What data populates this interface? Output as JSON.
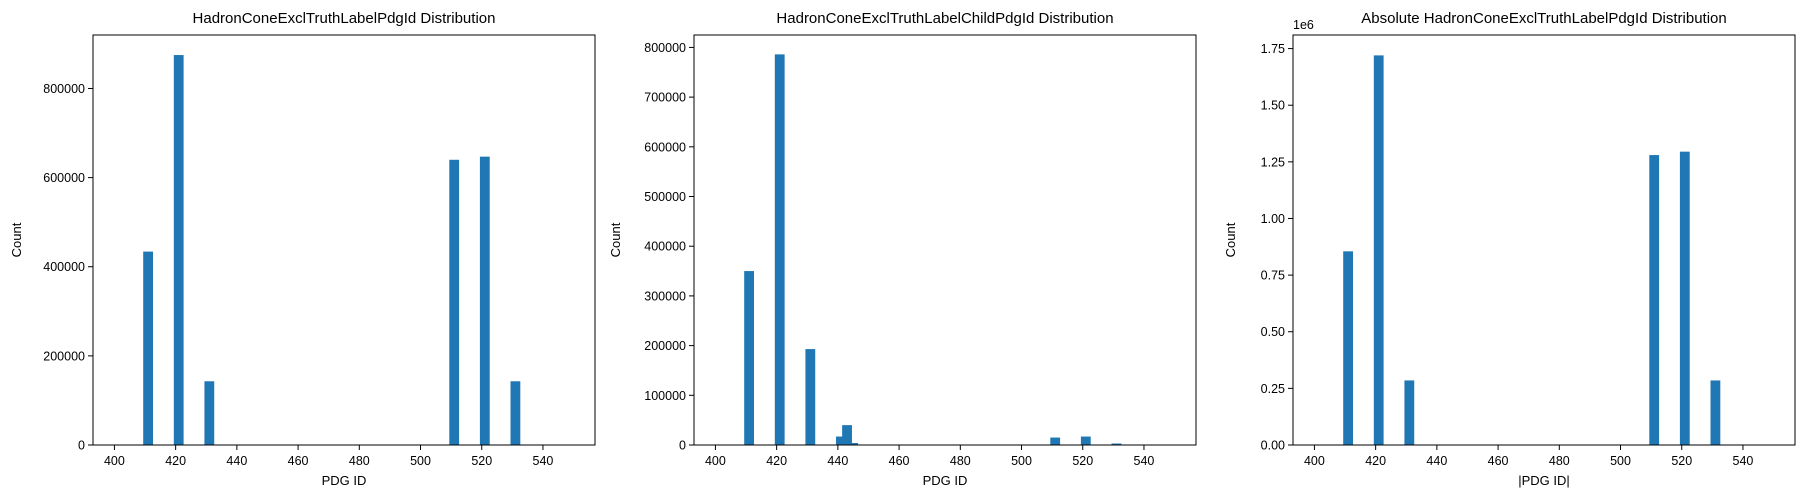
{
  "colors": {
    "bar": "#1f77b4"
  },
  "chart_data": [
    {
      "type": "bar",
      "title": "HadronConeExclTruthLabelPdgId Distribution",
      "xlabel": "PDG ID",
      "ylabel": "Count",
      "xlim": [
        393,
        557
      ],
      "ylim": [
        0,
        920000
      ],
      "bin_width": 3.2,
      "xticks": [
        400,
        420,
        440,
        460,
        480,
        500,
        520,
        540
      ],
      "xtick_labels": [
        "400",
        "420",
        "440",
        "460",
        "480",
        "500",
        "520",
        "540"
      ],
      "yticks": [
        0,
        200000,
        400000,
        600000,
        800000
      ],
      "ytick_labels": [
        "0",
        "200000",
        "400000",
        "600000",
        "800000"
      ],
      "offset_text": "",
      "x": [
        411,
        421,
        431,
        511,
        521,
        531
      ],
      "values": [
        434000,
        875000,
        143000,
        640000,
        647000,
        143000
      ]
    },
    {
      "type": "bar",
      "title": "HadronConeExclTruthLabelChildPdgId Distribution",
      "xlabel": "PDG ID",
      "ylabel": "Count",
      "xlim": [
        393,
        557
      ],
      "ylim": [
        0,
        825000
      ],
      "bin_width": 3.2,
      "xticks": [
        400,
        420,
        440,
        460,
        480,
        500,
        520,
        540
      ],
      "xtick_labels": [
        "400",
        "420",
        "440",
        "460",
        "480",
        "500",
        "520",
        "540"
      ],
      "yticks": [
        0,
        100000,
        200000,
        300000,
        400000,
        500000,
        600000,
        700000,
        800000
      ],
      "ytick_labels": [
        "0",
        "100000",
        "200000",
        "300000",
        "400000",
        "500000",
        "600000",
        "700000",
        "800000"
      ],
      "offset_text": "",
      "x": [
        411,
        421,
        431,
        441,
        443,
        445,
        511,
        521,
        531
      ],
      "values": [
        350000,
        786000,
        193000,
        17000,
        40000,
        4000,
        15000,
        17000,
        3000
      ]
    },
    {
      "type": "bar",
      "title": "Absolute HadronConeExclTruthLabelPdgId Distribution",
      "xlabel": "|PDG ID|",
      "ylabel": "Count",
      "xlim": [
        393,
        557
      ],
      "ylim": [
        0,
        1.81
      ],
      "bin_width": 3.2,
      "xticks": [
        400,
        420,
        440,
        460,
        480,
        500,
        520,
        540
      ],
      "xtick_labels": [
        "400",
        "420",
        "440",
        "460",
        "480",
        "500",
        "520",
        "540"
      ],
      "yticks": [
        0,
        0.25,
        0.5,
        0.75,
        1.0,
        1.25,
        1.5,
        1.75
      ],
      "ytick_labels": [
        "0.00",
        "0.25",
        "0.50",
        "0.75",
        "1.00",
        "1.25",
        "1.50",
        "1.75"
      ],
      "offset_text": "1e6",
      "x": [
        411,
        421,
        431,
        511,
        521,
        531
      ],
      "values": [
        0.855,
        1.72,
        0.285,
        1.28,
        1.295,
        0.285
      ]
    }
  ]
}
